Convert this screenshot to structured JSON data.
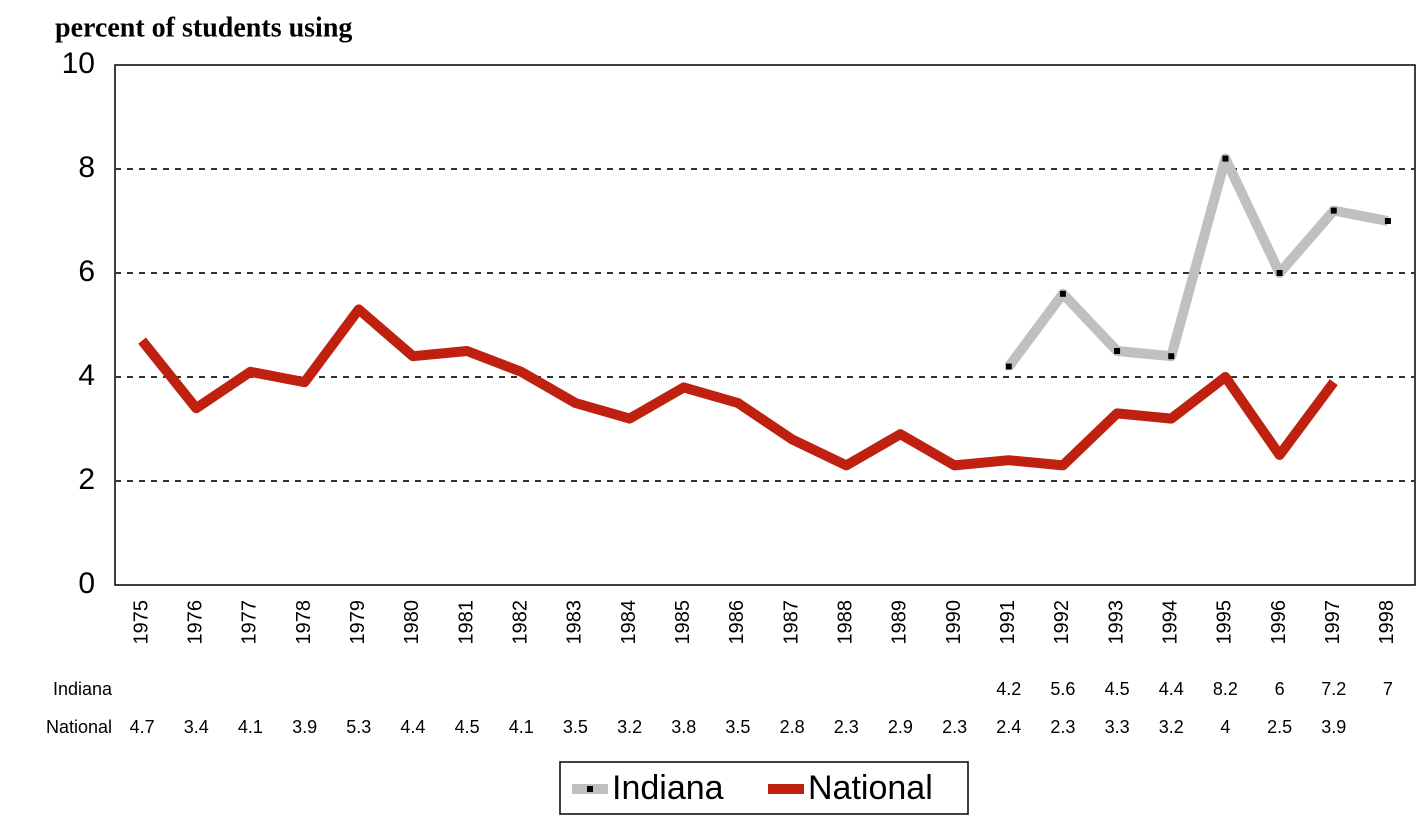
{
  "chart_data": {
    "type": "line",
    "y_label": "percent of students using",
    "categories": [
      "1975",
      "1976",
      "1977",
      "1978",
      "1979",
      "1980",
      "1981",
      "1982",
      "1983",
      "1984",
      "1985",
      "1986",
      "1987",
      "1988",
      "1989",
      "1990",
      "1991",
      "1992",
      "1993",
      "1994",
      "1995",
      "1996",
      "1997",
      "1998"
    ],
    "series": [
      {
        "name": "Indiana",
        "color": "#c0c0c0",
        "marker_color": "#000000",
        "markers": true,
        "values": [
          null,
          null,
          null,
          null,
          null,
          null,
          null,
          null,
          null,
          null,
          null,
          null,
          null,
          null,
          null,
          null,
          4.2,
          5.6,
          4.5,
          4.4,
          8.2,
          6,
          7.2,
          7
        ]
      },
      {
        "name": "National",
        "color": "#c0200f",
        "markers": false,
        "values": [
          4.7,
          3.4,
          4.1,
          3.9,
          5.3,
          4.4,
          4.5,
          4.1,
          3.5,
          3.2,
          3.8,
          3.5,
          2.8,
          2.3,
          2.9,
          2.3,
          2.4,
          2.3,
          3.3,
          3.2,
          4,
          2.5,
          3.9,
          null
        ]
      }
    ],
    "ylim": [
      0,
      10
    ],
    "yticks": [
      0,
      2,
      4,
      6,
      8,
      10
    ],
    "grid": true,
    "legend": "bottom",
    "data_table": true
  }
}
